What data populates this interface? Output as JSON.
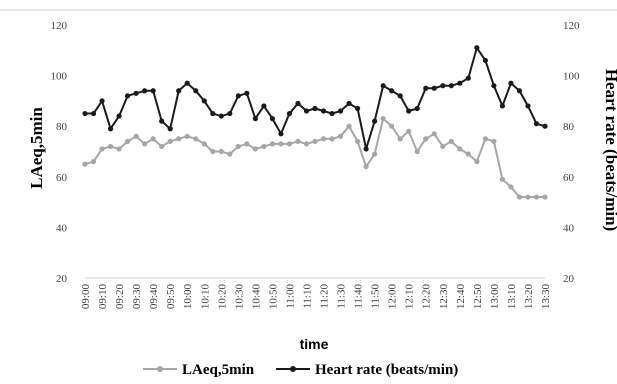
{
  "chart_data": {
    "type": "line",
    "xlabel": "time",
    "ylabel_left": "LAeq,5min",
    "ylabel_right": "Heart rate (beats/min)",
    "ylim": [
      20,
      120
    ],
    "y_ticks": [
      20,
      40,
      60,
      80,
      100,
      120
    ],
    "grid": false,
    "legend_position": "bottom",
    "x": [
      "09:00",
      "09:05",
      "09:10",
      "09:15",
      "09:20",
      "09:25",
      "09:30",
      "09:35",
      "09:40",
      "09:45",
      "09:50",
      "09:55",
      "10:00",
      "10:05",
      "10:10",
      "10:15",
      "10:20",
      "10:25",
      "10:30",
      "10:35",
      "10:40",
      "10:45",
      "10:50",
      "10:55",
      "11:00",
      "11:05",
      "11:10",
      "11:15",
      "11:20",
      "11:25",
      "11:30",
      "11:35",
      "11:40",
      "11:45",
      "11:50",
      "11:55",
      "12:00",
      "12:05",
      "12:10",
      "12:15",
      "12:20",
      "12:25",
      "12:30",
      "12:35",
      "12:40",
      "12:45",
      "12:50",
      "12:55",
      "13:00",
      "13:05",
      "13:10",
      "13:15",
      "13:20",
      "13:25",
      "13:30"
    ],
    "x_tick_labels": [
      "09:00",
      "09:10",
      "09:20",
      "09:30",
      "09:40",
      "09:50",
      "10:00",
      "10:10",
      "10:20",
      "10:30",
      "10:40",
      "10:50",
      "11:00",
      "11:10",
      "11:20",
      "11:30",
      "11:40",
      "11:50",
      "12:00",
      "12:10",
      "12:20",
      "12:30",
      "12:40",
      "12:50",
      "13:00",
      "13:10",
      "13:20",
      "13:30"
    ],
    "series": [
      {
        "name": "LAeq,5min",
        "color": "#a6a6a6",
        "values": [
          65,
          66,
          71,
          72,
          71,
          74,
          76,
          73,
          75,
          72,
          74,
          75,
          76,
          75,
          73,
          70,
          70,
          69,
          72,
          73,
          71,
          72,
          73,
          73,
          73,
          74,
          73,
          74,
          75,
          75,
          76,
          80,
          74,
          64,
          69,
          83,
          80,
          75,
          78,
          70,
          75,
          77,
          72,
          74,
          71,
          69,
          66,
          75,
          74,
          59,
          56,
          52,
          52,
          52,
          52
        ]
      },
      {
        "name": "Heart rate (beats/min)",
        "color": "#1a1a1a",
        "values": [
          85,
          85,
          90,
          79,
          84,
          92,
          93,
          94,
          94,
          82,
          79,
          94,
          97,
          94,
          90,
          85,
          84,
          85,
          92,
          93,
          83,
          88,
          83,
          77,
          85,
          89,
          86,
          87,
          86,
          85,
          86,
          89,
          87,
          71,
          82,
          96,
          94,
          92,
          86,
          87,
          95,
          95,
          96,
          96,
          97,
          99,
          111,
          106,
          96,
          88,
          97,
          94,
          88,
          81,
          80
        ]
      }
    ]
  }
}
